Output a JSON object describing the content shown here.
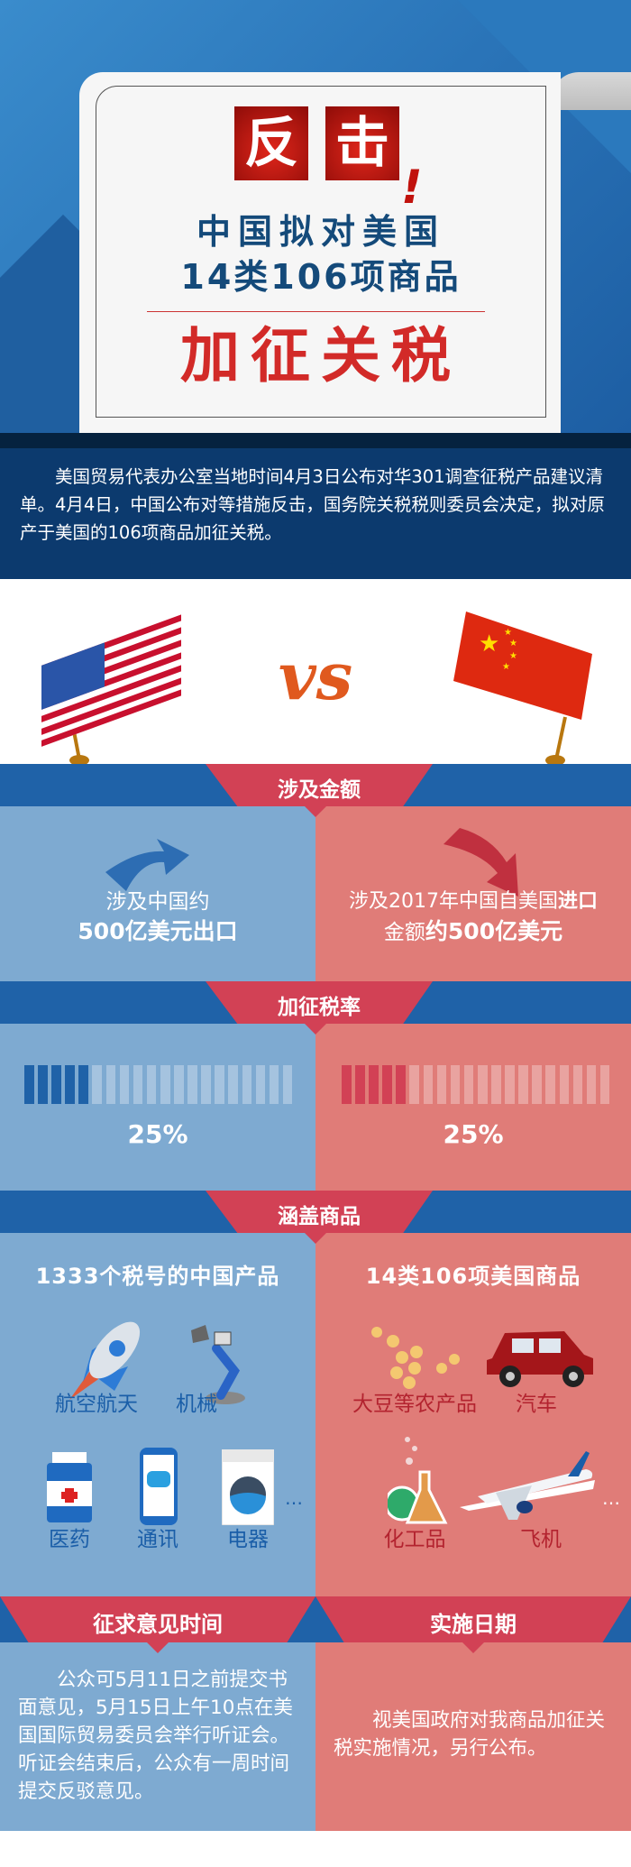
{
  "header": {
    "badge_chars": [
      "反",
      "击"
    ],
    "exclaim": "!",
    "line1": "中国拟对美国",
    "line2": "14类106项商品",
    "headline": "加征关税"
  },
  "intro": "美国贸易代表办公室当地时间4月3日公布对华301调查征税产品建议清单。4月4日，中国公布对等措施反击，国务院关税税则委员会决定，拟对原产于美国的106项商品加征关税。",
  "vs": "VS",
  "sections": {
    "amount": {
      "title": "涉及金额",
      "left": {
        "line1": "涉及中国约",
        "line2": "500亿美元出口"
      },
      "right": {
        "line1a": "涉及2017年中国自美国",
        "line1b": "进口",
        "line2a": "金额",
        "line2b": "约500亿美元"
      }
    },
    "rate": {
      "title": "加征税率",
      "left": {
        "value": "25%",
        "fraction": 0.25
      },
      "right": {
        "value": "25%",
        "fraction": 0.25
      }
    },
    "goods": {
      "title": "涵盖商品",
      "left": {
        "heading": "1333个税号的中国产品",
        "items": [
          "航空航天",
          "机械",
          "医药",
          "通讯",
          "电器"
        ],
        "more": "…"
      },
      "right": {
        "heading": "14类106项美国商品",
        "items": [
          "大豆等农产品",
          "汽车",
          "化工品",
          "飞机"
        ],
        "more": "…"
      }
    },
    "comment": {
      "title": "征求意见时间",
      "text": "公众可5月11日之前提交书面意见，5月15日上午10点在美国国际贸易委员会举行听证会。听证会结束后，公众有一周时间提交反驳意见。"
    },
    "implement": {
      "title": "实施日期",
      "text": "视美国政府对我商品加征关税实施情况，另行公布。"
    }
  },
  "colors": {
    "banner_blue": "#1f62a8",
    "banner_red": "#d24155",
    "panel_blue": "#7eaad1",
    "panel_red": "#e07c78",
    "vs_orange": "#e0591e"
  }
}
